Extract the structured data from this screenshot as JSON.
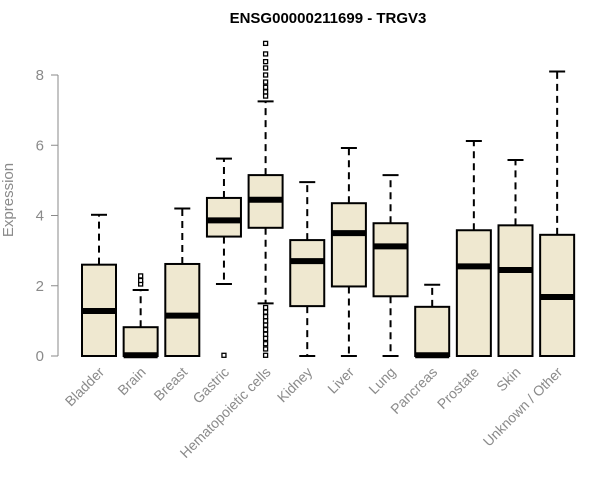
{
  "chart_data": {
    "type": "boxplot",
    "title": "ENSG00000211699 - TRGV3",
    "xlabel": "",
    "ylabel": "Expression",
    "ylim": [
      0,
      9
    ],
    "yticks": [
      0,
      2,
      4,
      6,
      8
    ],
    "box_color": "#efe8d0",
    "categories": [
      "Bladder",
      "Brain",
      "Breast",
      "Gastric",
      "Hematopoietic cells",
      "Kidney",
      "Liver",
      "Lung",
      "Pancreas",
      "Prostate",
      "Skin",
      "Unknown / Other"
    ],
    "boxes": [
      {
        "name": "Bladder",
        "min": 0,
        "q1": 0,
        "median": 1.28,
        "q3": 2.6,
        "max": 4.02,
        "outliers": []
      },
      {
        "name": "Brain",
        "min": 0,
        "q1": 0,
        "median": 0.02,
        "q3": 0.82,
        "max": 1.88,
        "outliers": [
          2.05,
          2.15,
          2.28
        ]
      },
      {
        "name": "Breast",
        "min": 0,
        "q1": 0,
        "median": 1.15,
        "q3": 2.62,
        "max": 4.2,
        "outliers": []
      },
      {
        "name": "Gastric",
        "min": 2.05,
        "q1": 3.4,
        "median": 3.86,
        "q3": 4.5,
        "max": 5.62,
        "outliers": [
          0.02
        ]
      },
      {
        "name": "Hematopoietic cells",
        "min": 1.5,
        "q1": 3.65,
        "median": 4.45,
        "q3": 5.15,
        "max": 7.25,
        "outliers": [
          0.02,
          0.2,
          0.35,
          0.5,
          0.62,
          0.75,
          0.88,
          1.0,
          1.12,
          1.25,
          1.38,
          7.4,
          7.52,
          7.65,
          7.8,
          8.0,
          8.2,
          8.38,
          8.6,
          8.9
        ]
      },
      {
        "name": "Kidney",
        "min": 0,
        "q1": 1.42,
        "median": 2.7,
        "q3": 3.3,
        "max": 4.95,
        "outliers": []
      },
      {
        "name": "Liver",
        "min": 0,
        "q1": 1.98,
        "median": 3.5,
        "q3": 4.35,
        "max": 5.92,
        "outliers": []
      },
      {
        "name": "Lung",
        "min": 0,
        "q1": 1.7,
        "median": 3.12,
        "q3": 3.78,
        "max": 5.15,
        "outliers": []
      },
      {
        "name": "Pancreas",
        "min": 0,
        "q1": 0,
        "median": 0.02,
        "q3": 1.4,
        "max": 2.03,
        "outliers": []
      },
      {
        "name": "Prostate",
        "min": 0,
        "q1": 0,
        "median": 2.55,
        "q3": 3.58,
        "max": 6.12,
        "outliers": []
      },
      {
        "name": "Skin",
        "min": 0,
        "q1": 0,
        "median": 2.45,
        "q3": 3.72,
        "max": 5.58,
        "outliers": []
      },
      {
        "name": "Unknown / Other",
        "min": 0,
        "q1": 0,
        "median": 1.68,
        "q3": 3.45,
        "max": 8.1,
        "outliers": []
      }
    ]
  }
}
